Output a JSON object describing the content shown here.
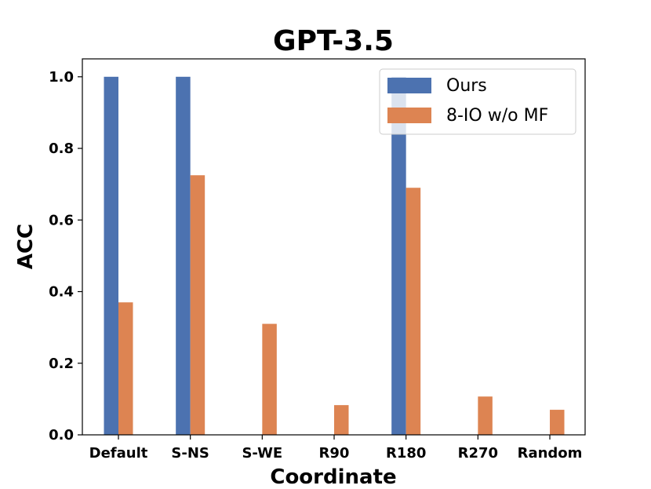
{
  "chart_data": {
    "type": "bar",
    "title": "GPT-3.5",
    "xlabel": "Coordinate",
    "ylabel": "ACC",
    "categories": [
      "Default",
      "S-NS",
      "S-WE",
      "R90",
      "R180",
      "R270",
      "Random"
    ],
    "series": [
      {
        "name": "Ours",
        "color": "#4c72b0",
        "values": [
          1.0,
          1.0,
          0.0,
          0.0,
          1.0,
          0.0,
          0.0
        ]
      },
      {
        "name": "8-IO w/o MF",
        "color": "#dd8452",
        "values": [
          0.37,
          0.725,
          0.31,
          0.083,
          0.69,
          0.107,
          0.07
        ]
      }
    ],
    "ylim": [
      0,
      1.05
    ],
    "yticks": [
      "0.0",
      "0.2",
      "0.4",
      "0.6",
      "0.8",
      "1.0"
    ],
    "grid": false,
    "legend_position": "top-right"
  }
}
